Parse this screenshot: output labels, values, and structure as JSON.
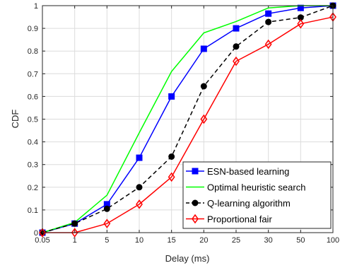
{
  "chart_data": {
    "type": "line",
    "title": "",
    "xlabel": "Delay (ms)",
    "ylabel": "CDF",
    "categories": [
      "0.05",
      "1",
      "5",
      "10",
      "15",
      "20",
      "25",
      "30",
      "50",
      "100"
    ],
    "yticks": [
      "0",
      "0.1",
      "0.2",
      "0.3",
      "0.4",
      "0.5",
      "0.6",
      "0.7",
      "0.8",
      "0.9",
      "1"
    ],
    "ylim": [
      0,
      1
    ],
    "grid": true,
    "legend_position": "bottom-right",
    "series": [
      {
        "name": "ESN-based learning",
        "color": "#0000ff",
        "marker": "square",
        "dash": "solid",
        "values": [
          0,
          0.04,
          0.125,
          0.33,
          0.6,
          0.81,
          0.9,
          0.965,
          0.99,
          1.0
        ]
      },
      {
        "name": "Optimal heuristic search",
        "color": "#00ff00",
        "marker": "none",
        "dash": "solid",
        "values": [
          0,
          0.045,
          0.165,
          0.44,
          0.71,
          0.88,
          0.93,
          0.99,
          1.0,
          1.0
        ]
      },
      {
        "name": "Q-learning algorithm",
        "color": "#000000",
        "marker": "circle",
        "dash": "dashed",
        "values": [
          0,
          0.04,
          0.105,
          0.2,
          0.335,
          0.645,
          0.82,
          0.928,
          0.948,
          1.0
        ]
      },
      {
        "name": "Proportional fair",
        "color": "#ff0000",
        "marker": "diamond",
        "dash": "solid",
        "values": [
          0,
          0.0,
          0.04,
          0.125,
          0.245,
          0.5,
          0.755,
          0.83,
          0.92,
          0.95
        ]
      }
    ]
  }
}
